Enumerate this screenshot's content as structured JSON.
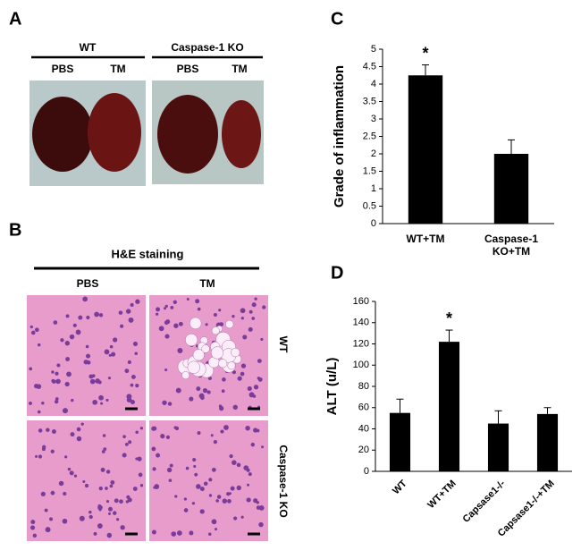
{
  "panels": {
    "A": {
      "label": "A",
      "groups": [
        "WT",
        "Caspase-1 KO"
      ],
      "conditions": [
        "PBS",
        "TM",
        "PBS",
        "TM"
      ]
    },
    "B": {
      "label": "B",
      "title": "H&E staining",
      "columns": [
        "PBS",
        "TM"
      ],
      "rows": [
        "WT",
        "Caspase-1 KO"
      ]
    }
  },
  "chart_data": [
    {
      "type": "bar",
      "label": "C",
      "ylabel": "Grade of inflammation",
      "categories": [
        "WT+TM",
        "Caspase-1 KO+TM"
      ],
      "values": [
        4.25,
        2.0
      ],
      "errors": [
        0.3,
        0.4
      ],
      "bar_labels": [
        "*",
        null
      ],
      "color": "#000000",
      "ylim": [
        0,
        5
      ],
      "yticks": [
        0,
        0.5,
        1,
        1.5,
        2,
        2.5,
        3,
        3.5,
        4,
        4.5,
        5
      ]
    },
    {
      "type": "bar",
      "label": "D",
      "ylabel": "ALT (u/L)",
      "categories": [
        "WT",
        "WT+TM",
        "Capsase1-/-",
        "Capsase1-/-+TM"
      ],
      "values": [
        55,
        122,
        45,
        54
      ],
      "errors": [
        13,
        11,
        12,
        6
      ],
      "bar_labels": [
        null,
        "*",
        null,
        null
      ],
      "color": "#000000",
      "ylim": [
        0,
        160
      ],
      "yticks": [
        0,
        20,
        40,
        60,
        80,
        100,
        120,
        140,
        160
      ]
    }
  ]
}
